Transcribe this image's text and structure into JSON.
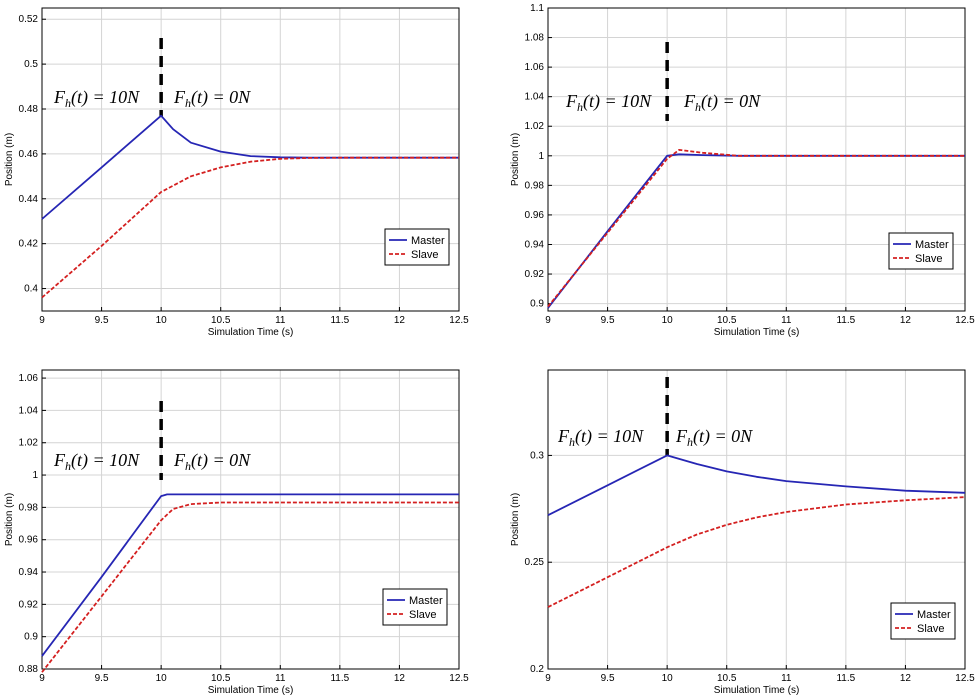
{
  "colors": {
    "master": "#2626b4",
    "slave": "#d42020",
    "grid": "#d4d4d4"
  },
  "chart_data": [
    {
      "type": "line",
      "xlabel": "Simulation Time (s)",
      "ylabel": "Position (m)",
      "xlim": [
        9,
        12.5
      ],
      "ylim": [
        0.39,
        0.525
      ],
      "xticks": [
        "9",
        "9.5",
        "10",
        "10.5",
        "11",
        "11.5",
        "12",
        "12.5"
      ],
      "xtick_values": [
        9,
        9.5,
        10,
        10.5,
        11,
        11.5,
        12,
        12.5
      ],
      "yticks": [
        "0.4",
        "0.42",
        "0.44",
        "0.46",
        "0.48",
        "0.5",
        "0.52"
      ],
      "ytick_values": [
        0.4,
        0.42,
        0.44,
        0.46,
        0.48,
        0.5,
        0.52
      ],
      "legend_position": "bottom-right",
      "grid": true,
      "event_x": 10,
      "annotations": {
        "left": "F_h(t) = 10N",
        "right": "F_h(t) = 0N"
      },
      "series": [
        {
          "name": "Master",
          "style": "solid",
          "x": [
            9,
            9.5,
            10,
            10.1,
            10.25,
            10.5,
            10.75,
            11,
            11.25,
            11.5,
            12,
            12.5
          ],
          "y": [
            0.431,
            0.454,
            0.477,
            0.471,
            0.465,
            0.461,
            0.459,
            0.4585,
            0.4583,
            0.4583,
            0.4583,
            0.4583
          ]
        },
        {
          "name": "Slave",
          "style": "dashed",
          "x": [
            9,
            9.5,
            10,
            10.25,
            10.5,
            10.75,
            11,
            11.25,
            11.5,
            12,
            12.5
          ],
          "y": [
            0.396,
            0.419,
            0.443,
            0.45,
            0.454,
            0.4565,
            0.4578,
            0.4582,
            0.4583,
            0.4583,
            0.4583
          ]
        }
      ]
    },
    {
      "type": "line",
      "xlabel": "Simulation Time (s)",
      "ylabel": "Position (m)",
      "xlim": [
        9,
        12.5
      ],
      "ylim": [
        0.895,
        1.1
      ],
      "xticks": [
        "9",
        "9.5",
        "10",
        "10.5",
        "11",
        "11.5",
        "12",
        "12.5"
      ],
      "xtick_values": [
        9,
        9.5,
        10,
        10.5,
        11,
        11.5,
        12,
        12.5
      ],
      "yticks": [
        "0.9",
        "0.92",
        "0.94",
        "0.96",
        "0.98",
        "1",
        "1.02",
        "1.04",
        "1.06",
        "1.08",
        "1.1"
      ],
      "ytick_values": [
        0.9,
        0.92,
        0.94,
        0.96,
        0.98,
        1.0,
        1.02,
        1.04,
        1.06,
        1.08,
        1.1
      ],
      "legend_position": "bottom-right",
      "grid": true,
      "event_x": 10,
      "annotations": {
        "left": "F_h(t) = 10N",
        "right": "F_h(t) = 0N"
      },
      "series": [
        {
          "name": "Master",
          "style": "solid",
          "x": [
            9,
            9.5,
            10,
            10.1,
            10.3,
            10.6,
            11,
            12,
            12.5
          ],
          "y": [
            0.897,
            0.949,
            1.0,
            1.001,
            1.0005,
            1.0,
            1.0,
            1.0,
            1.0
          ]
        },
        {
          "name": "Slave",
          "style": "dashed",
          "x": [
            9,
            9.5,
            10,
            10.1,
            10.3,
            10.6,
            11,
            12,
            12.5
          ],
          "y": [
            0.898,
            0.948,
            0.998,
            1.004,
            1.002,
            1.0,
            1.0,
            1.0,
            1.0
          ]
        }
      ]
    },
    {
      "type": "line",
      "xlabel": "Simulation Time (s)",
      "ylabel": "Position (m)",
      "xlim": [
        9,
        12.5
      ],
      "ylim": [
        0.88,
        1.065
      ],
      "xticks": [
        "9",
        "9.5",
        "10",
        "10.5",
        "11",
        "11.5",
        "12",
        "12.5"
      ],
      "xtick_values": [
        9,
        9.5,
        10,
        10.5,
        11,
        11.5,
        12,
        12.5
      ],
      "yticks": [
        "0.88",
        "0.9",
        "0.92",
        "0.94",
        "0.96",
        "0.98",
        "1",
        "1.02",
        "1.04",
        "1.06"
      ],
      "ytick_values": [
        0.88,
        0.9,
        0.92,
        0.94,
        0.96,
        0.98,
        1.0,
        1.02,
        1.04,
        1.06
      ],
      "legend_position": "bottom-right",
      "grid": true,
      "event_x": 10,
      "annotations": {
        "left": "F_h(t) = 10N",
        "right": "F_h(t) = 0N"
      },
      "series": [
        {
          "name": "Master",
          "style": "solid",
          "x": [
            9,
            9.5,
            10,
            10.05,
            10.5,
            11,
            12,
            12.5
          ],
          "y": [
            0.888,
            0.937,
            0.987,
            0.988,
            0.988,
            0.988,
            0.988,
            0.988
          ]
        },
        {
          "name": "Slave",
          "style": "dashed",
          "x": [
            9,
            9.5,
            10,
            10.1,
            10.25,
            10.5,
            11,
            12,
            12.5
          ],
          "y": [
            0.878,
            0.925,
            0.972,
            0.979,
            0.982,
            0.983,
            0.983,
            0.983,
            0.983
          ]
        }
      ]
    },
    {
      "type": "line",
      "xlabel": "Simulation Time (s)",
      "ylabel": "Position (m)",
      "xlim": [
        9,
        12.5
      ],
      "ylim": [
        0.2,
        0.34
      ],
      "xticks": [
        "9",
        "9.5",
        "10",
        "10.5",
        "11",
        "11.5",
        "12",
        "12.5"
      ],
      "xtick_values": [
        9,
        9.5,
        10,
        10.5,
        11,
        11.5,
        12,
        12.5
      ],
      "yticks": [
        "0.2",
        "0.25",
        "0.3"
      ],
      "ytick_values": [
        0.2,
        0.25,
        0.3
      ],
      "legend_position": "bottom-right",
      "grid": true,
      "event_x": 10,
      "annotations": {
        "left": "F_h(t) = 10N",
        "right": "F_h(t) = 0N"
      },
      "series": [
        {
          "name": "Master",
          "style": "solid",
          "x": [
            9,
            9.5,
            10,
            10.25,
            10.5,
            10.75,
            11,
            11.5,
            12,
            12.5
          ],
          "y": [
            0.272,
            0.286,
            0.3,
            0.296,
            0.2925,
            0.29,
            0.288,
            0.2855,
            0.2835,
            0.2825
          ]
        },
        {
          "name": "Slave",
          "style": "dashed",
          "x": [
            9,
            9.5,
            10,
            10.25,
            10.5,
            10.75,
            11,
            11.5,
            12,
            12.5
          ],
          "y": [
            0.229,
            0.243,
            0.257,
            0.263,
            0.2675,
            0.271,
            0.2735,
            0.277,
            0.279,
            0.2805
          ]
        }
      ]
    }
  ]
}
